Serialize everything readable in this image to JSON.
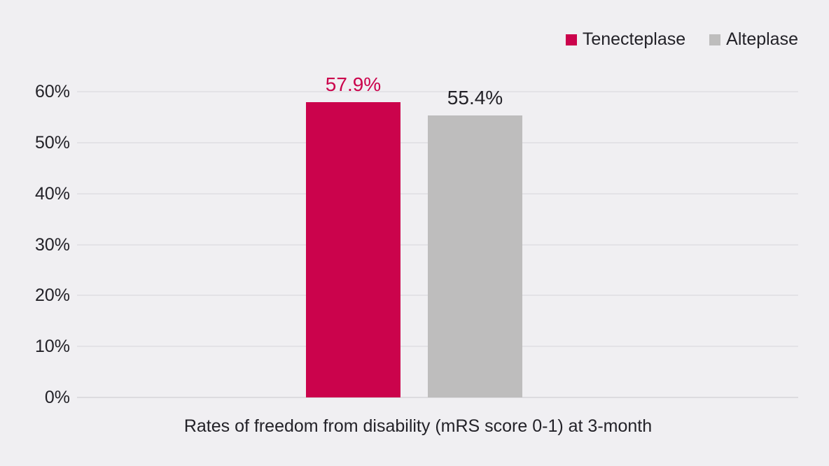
{
  "page": {
    "background": "#F0EFF2"
  },
  "legend": {
    "position": "top-right",
    "items": [
      {
        "label": "Tenecteplase",
        "color": "#CB034C"
      },
      {
        "label": "Alteplase",
        "color": "#BEBDBD"
      }
    ]
  },
  "chart_data": {
    "type": "bar",
    "categories": [
      "Tenecteplase",
      "Alteplase"
    ],
    "values": [
      57.9,
      55.4
    ],
    "value_labels": [
      "57.9%",
      "55.4%"
    ],
    "bar_colors": [
      "#CB034C",
      "#BEBDBD"
    ],
    "value_label_colors": [
      "#CB034C",
      "#232228"
    ],
    "title": "",
    "xlabel": "Rates of freedom from disability (mRS score 0-1) at 3-month",
    "ylabel": "",
    "ylim": [
      0,
      60
    ],
    "yticks": [
      0,
      10,
      20,
      30,
      40,
      50,
      60
    ],
    "ytick_labels": [
      "0%",
      "10%",
      "20%",
      "30%",
      "40%",
      "50%",
      "60%"
    ],
    "grid": "horizontal",
    "legend_position": "top-right",
    "colors": {
      "grid_line": "#E3E2E6",
      "axis_text": "#232228",
      "background": "#F0EFF2"
    }
  }
}
